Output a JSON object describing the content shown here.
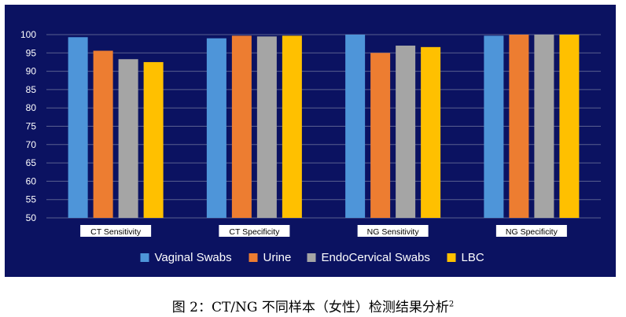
{
  "caption": {
    "main": "图 2：CT/NG 不同样本（女性）检测结果分析",
    "superscript": "2"
  },
  "chart_data": {
    "type": "bar",
    "title": "",
    "xlabel": "",
    "ylabel": "",
    "ylim": [
      50,
      100
    ],
    "yticks": [
      50,
      55,
      60,
      65,
      70,
      75,
      80,
      85,
      90,
      95,
      100
    ],
    "grid": true,
    "legend_position": "bottom",
    "background": "#0b1261",
    "categories": [
      "CT Sensitivity",
      "CT Specificity",
      "NG Sensitivity",
      "NG Specificity"
    ],
    "series": [
      {
        "name": "Vaginal Swabs",
        "color": "#4e95d9",
        "values": [
          99.3,
          99.0,
          100.0,
          99.7
        ]
      },
      {
        "name": "Urine",
        "color": "#ed7d31",
        "values": [
          95.6,
          99.7,
          95.0,
          100.0
        ]
      },
      {
        "name": "EndoCervical Swabs",
        "color": "#a5a5a5",
        "values": [
          93.3,
          99.5,
          97.0,
          100.0
        ]
      },
      {
        "name": "LBC",
        "color": "#ffc000",
        "values": [
          92.5,
          99.7,
          96.6,
          100.0
        ]
      }
    ]
  }
}
